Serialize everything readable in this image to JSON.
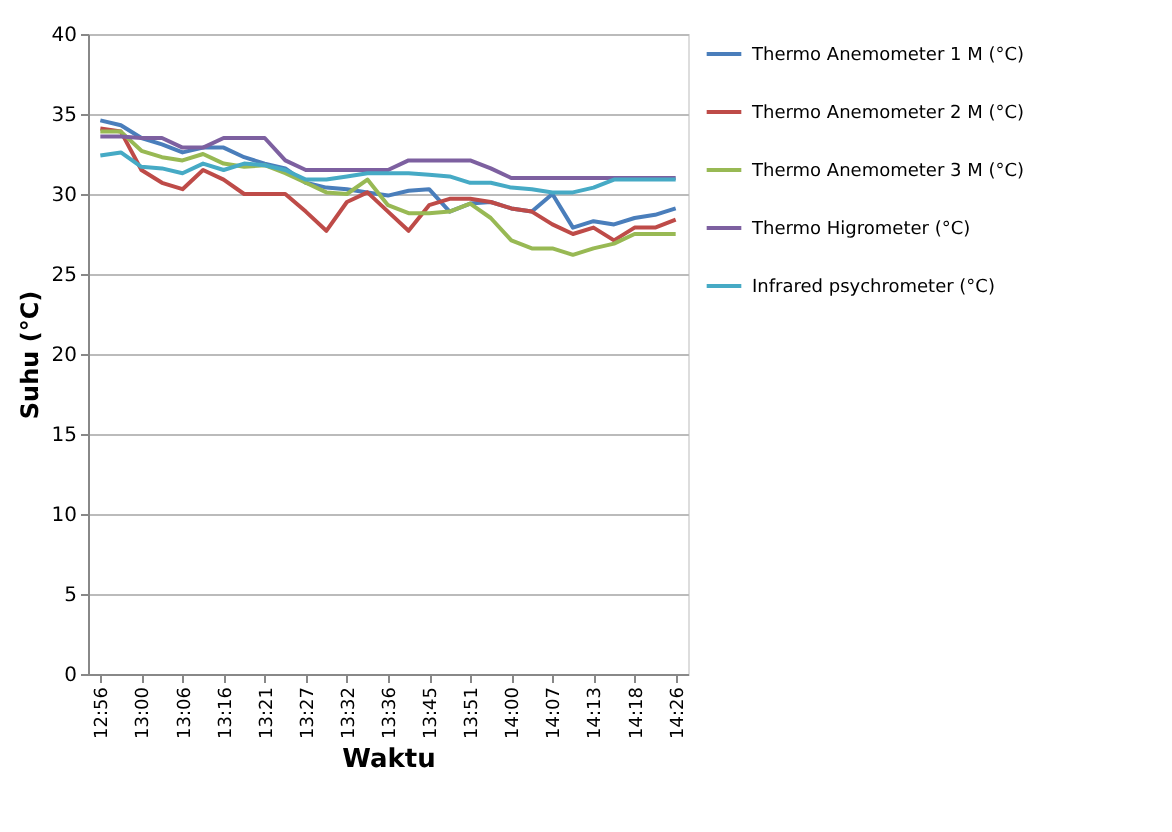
{
  "chart_data": {
    "type": "line",
    "xlabel": "Waktu",
    "ylabel": "Suhu (°C)",
    "categories": [
      "12:56",
      null,
      "13:00",
      null,
      "13:06",
      null,
      "13:16",
      null,
      "13:21",
      null,
      "13:27",
      null,
      "13:32",
      null,
      "13:36",
      null,
      "13:45",
      null,
      "13:51",
      null,
      "14:00",
      null,
      "14:07",
      null,
      "14:13",
      null,
      "14:18",
      null,
      "14:26"
    ],
    "series": [
      {
        "name": "Thermo Anemometer 1 M (°C)",
        "color": "#4a7ebb",
        "values": [
          34.6,
          34.3,
          33.5,
          33.1,
          32.6,
          32.9,
          32.9,
          32.3,
          31.9,
          31.6,
          30.7,
          30.4,
          30.3,
          30.1,
          29.9,
          30.2,
          30.3,
          28.9,
          29.4,
          29.5,
          29.1,
          28.9,
          30.0,
          27.9,
          28.3,
          28.1,
          28.5,
          28.7,
          29.1
        ]
      },
      {
        "name": "Thermo Anemometer 2 M (°C)",
        "color": "#be4b48",
        "values": [
          34.1,
          33.9,
          31.5,
          30.7,
          30.3,
          31.5,
          30.9,
          30.0,
          30.0,
          30.0,
          28.9,
          27.7,
          29.5,
          30.1,
          28.9,
          27.7,
          29.3,
          29.7,
          29.7,
          29.5,
          29.1,
          28.9,
          28.1,
          27.5,
          27.9,
          27.1,
          27.9,
          27.9,
          28.4
        ]
      },
      {
        "name": "Thermo Anemometer 3 M (°C)",
        "color": "#98b954",
        "values": [
          33.9,
          33.9,
          32.7,
          32.3,
          32.1,
          32.5,
          31.9,
          31.7,
          31.8,
          31.3,
          30.7,
          30.1,
          30.0,
          30.9,
          29.3,
          28.8,
          28.8,
          28.9,
          29.4,
          28.5,
          27.1,
          26.6,
          26.6,
          26.2,
          26.6,
          26.9,
          27.5,
          27.5,
          27.5
        ]
      },
      {
        "name": "Thermo Higrometer (°C)",
        "color": "#7d60a0",
        "values": [
          33.6,
          33.6,
          33.5,
          33.5,
          32.9,
          32.9,
          33.5,
          33.5,
          33.5,
          32.1,
          31.5,
          31.5,
          31.5,
          31.5,
          31.5,
          32.1,
          32.1,
          32.1,
          32.1,
          31.6,
          31.0,
          31.0,
          31.0,
          31.0,
          31.0,
          31.0,
          31.0,
          31.0,
          31.0
        ]
      },
      {
        "name": "Infrared psychrometer (°C)",
        "color": "#46aac5",
        "values": [
          32.4,
          32.6,
          31.7,
          31.6,
          31.3,
          31.9,
          31.5,
          31.9,
          31.8,
          31.5,
          30.9,
          30.9,
          31.1,
          31.3,
          31.3,
          31.3,
          31.2,
          31.1,
          30.7,
          30.7,
          30.4,
          30.3,
          30.1,
          30.1,
          30.4,
          30.9,
          30.9,
          30.9,
          30.9
        ]
      }
    ],
    "ylim": [
      0,
      40
    ],
    "yticks": [
      0,
      5,
      10,
      15,
      20,
      25,
      30,
      35,
      40
    ],
    "grid": "y",
    "legend": "right",
    "marker": "none",
    "line_style": "solid"
  }
}
